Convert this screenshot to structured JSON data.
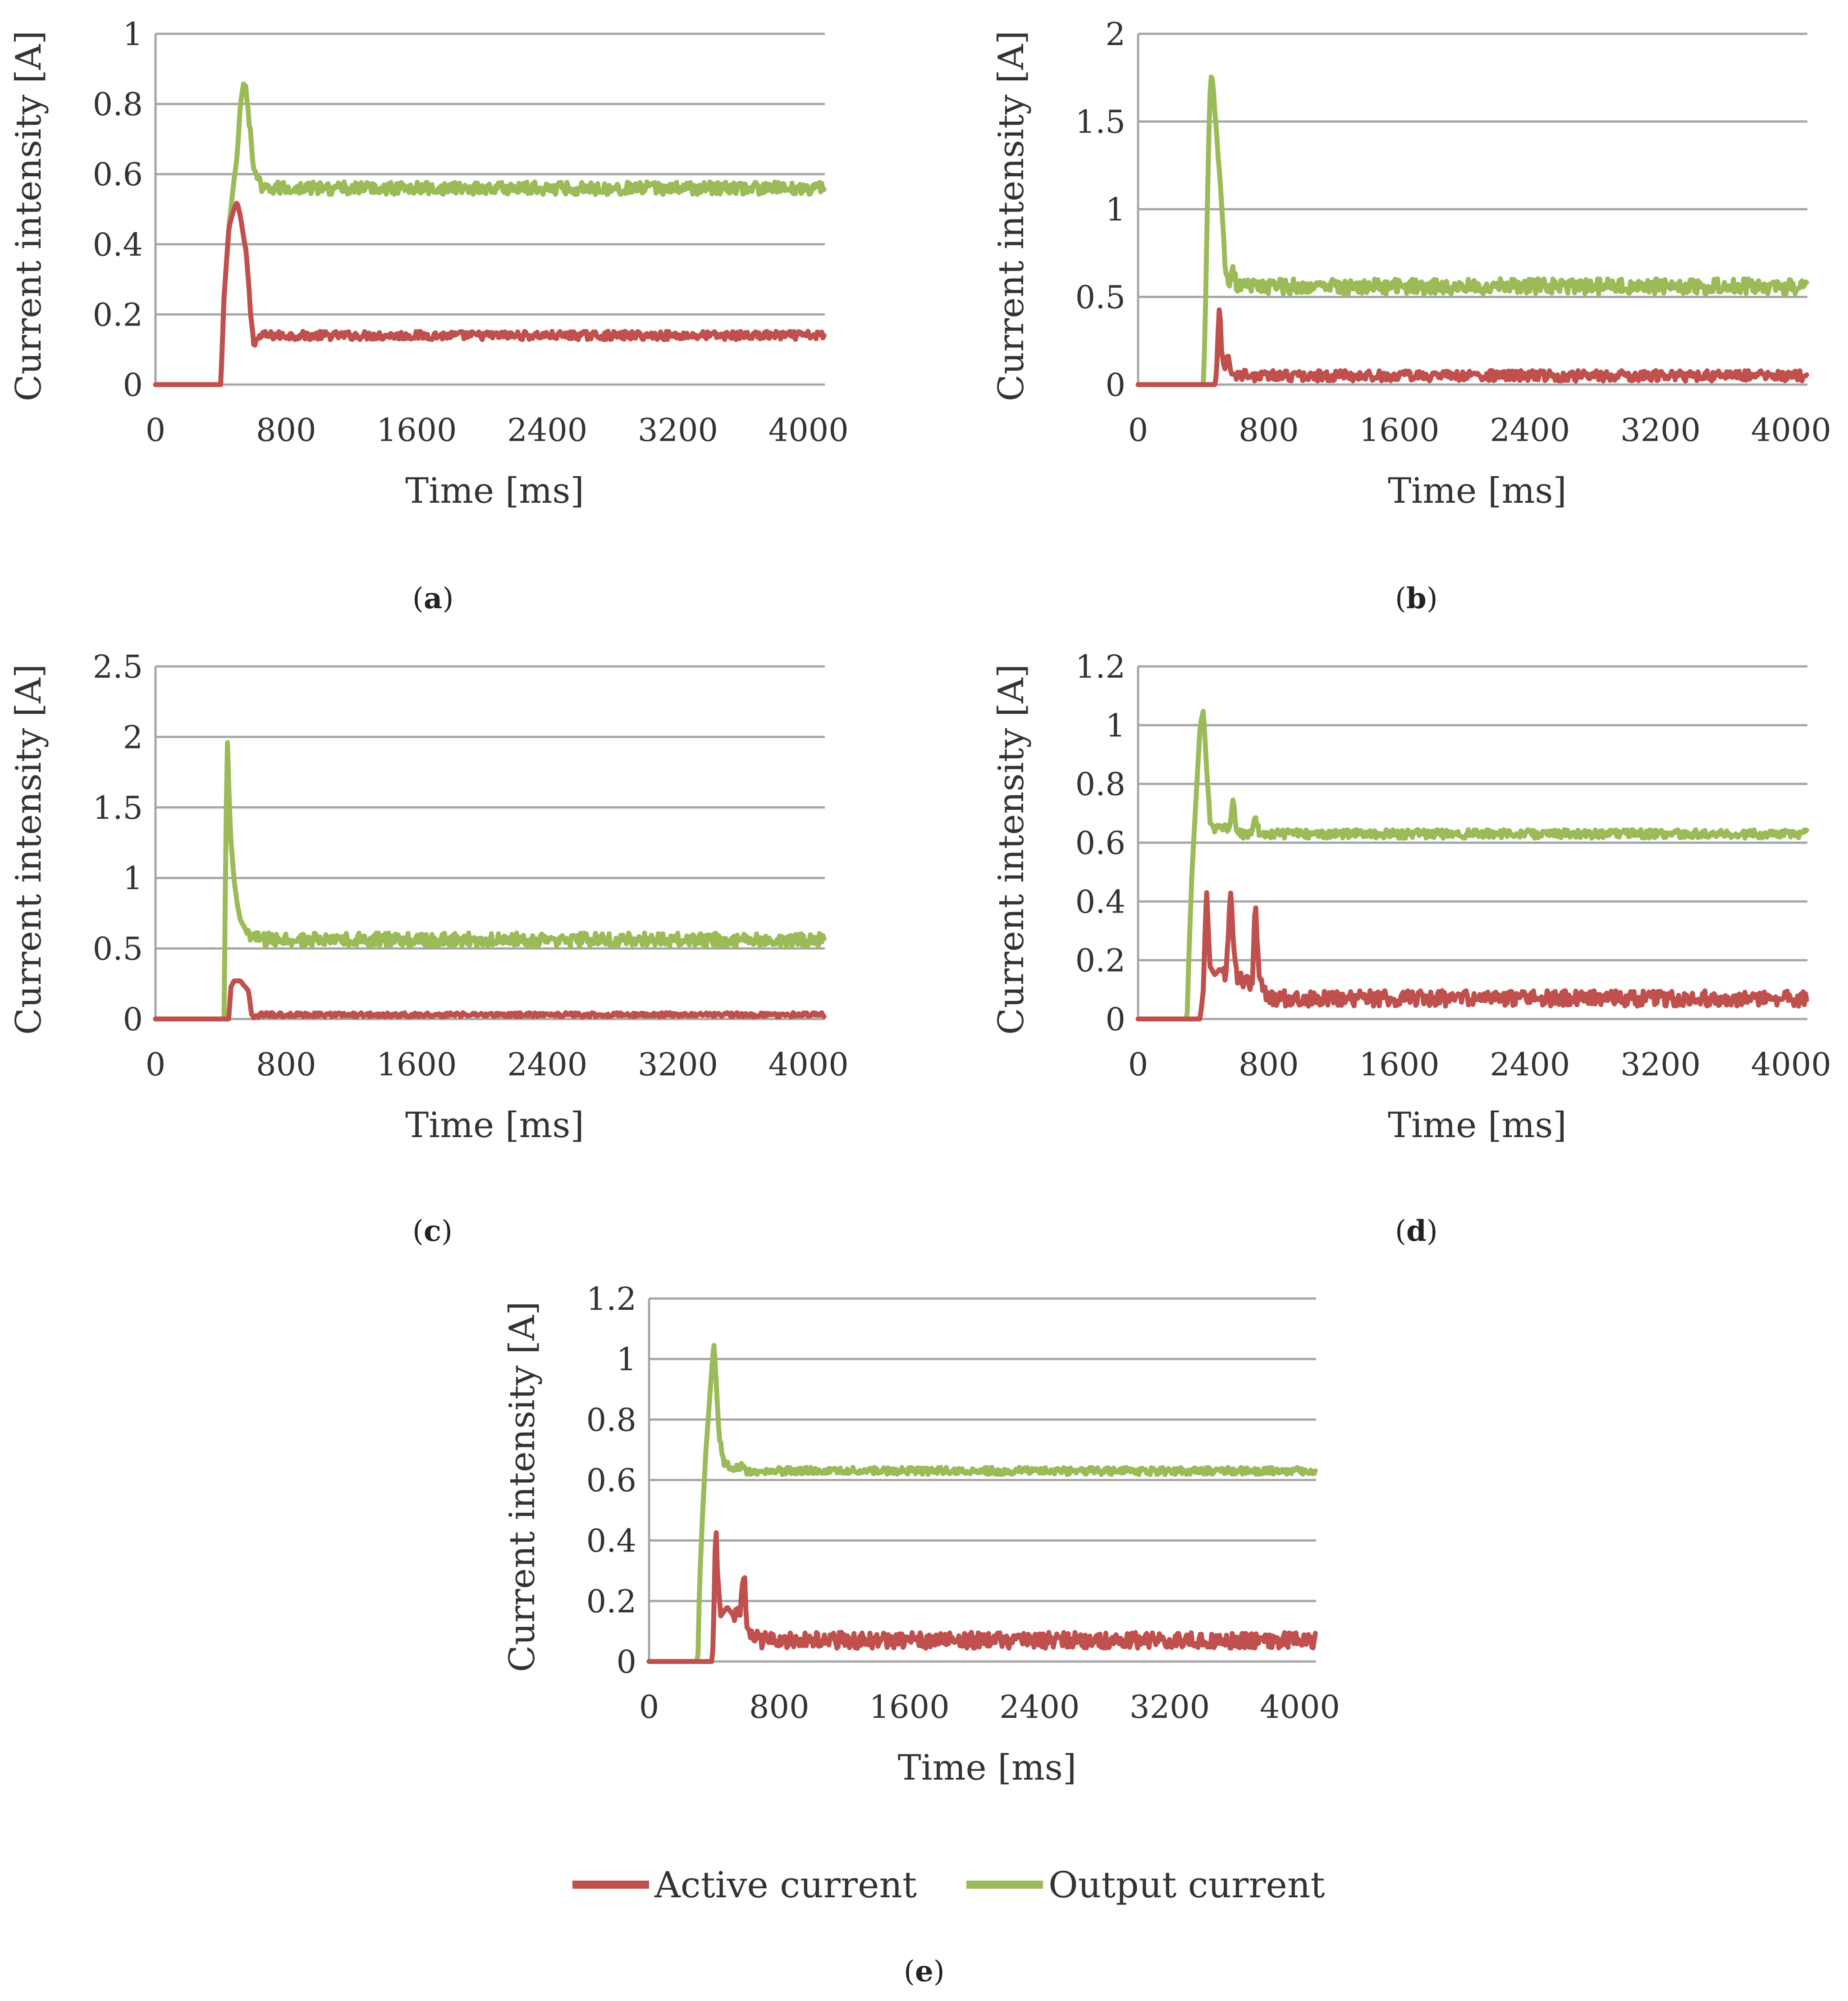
{
  "colors": {
    "active": "#c0504d",
    "output": "#9bbb59",
    "grid": "#a6a6a6",
    "axis_text": "#333333"
  },
  "legend": {
    "active_label": "Active current",
    "output_label": "Output current"
  },
  "chart_data": [
    {
      "id": "a",
      "type": "line",
      "panel_label": "a",
      "xlabel": "Time [ms]",
      "ylabel": "Current intensity [A]",
      "xlim": [
        0,
        4100
      ],
      "ylim": [
        0,
        1
      ],
      "xticks": [
        0,
        800,
        1600,
        2400,
        3200,
        4000
      ],
      "yticks": [
        0,
        0.2,
        0.4,
        0.6,
        0.8,
        1
      ],
      "ytick_labels": [
        "0",
        "0.2",
        "0.4",
        "0.6",
        "0.8",
        "1"
      ],
      "series": [
        {
          "name": "Active current",
          "color_key": "active",
          "noise": 0.012,
          "x": [
            0,
            400,
            420,
            450,
            480,
            500,
            520,
            540,
            560,
            580,
            600,
            650,
            700,
            800,
            1600,
            2400,
            3200,
            4100
          ],
          "y": [
            0,
            0,
            0.25,
            0.45,
            0.5,
            0.52,
            0.48,
            0.42,
            0.35,
            0.22,
            0.12,
            0.14,
            0.14,
            0.14,
            0.14,
            0.14,
            0.14,
            0.14
          ]
        },
        {
          "name": "Output current",
          "color_key": "output",
          "noise": 0.018,
          "x": [
            0,
            400,
            420,
            450,
            480,
            500,
            520,
            540,
            560,
            580,
            600,
            620,
            650,
            700,
            800,
            1600,
            2400,
            3200,
            4100
          ],
          "y": [
            0,
            0,
            0.25,
            0.45,
            0.58,
            0.65,
            0.8,
            0.86,
            0.82,
            0.72,
            0.62,
            0.6,
            0.55,
            0.56,
            0.56,
            0.56,
            0.56,
            0.56,
            0.56
          ]
        }
      ]
    },
    {
      "id": "b",
      "type": "line",
      "panel_label": "b",
      "xlabel": "Time [ms]",
      "ylabel": "Current intensity [A]",
      "xlim": [
        0,
        4100
      ],
      "ylim": [
        0,
        2
      ],
      "xticks": [
        0,
        800,
        1600,
        2400,
        3200,
        4000
      ],
      "yticks": [
        0,
        0.5,
        1,
        1.5,
        2
      ],
      "ytick_labels": [
        "0",
        "0.5",
        "1",
        "1.5",
        "2"
      ],
      "series": [
        {
          "name": "Active current",
          "color_key": "active",
          "noise": 0.015,
          "x": [
            0,
            450,
            470,
            480,
            490,
            500,
            510,
            530,
            550,
            560,
            570,
            600,
            700,
            800,
            1600,
            2400,
            3200,
            4100
          ],
          "y": [
            0,
            0,
            0,
            0.05,
            0.3,
            0.48,
            0.2,
            0.08,
            0.18,
            0.12,
            0.06,
            0.06,
            0.05,
            0.05,
            0.05,
            0.05,
            0.05,
            0.05
          ]
        },
        {
          "name": "Output current",
          "color_key": "output",
          "noise": 0.022,
          "x": [
            0,
            400,
            410,
            420,
            430,
            440,
            450,
            460,
            470,
            480,
            490,
            500,
            520,
            540,
            560,
            580,
            600,
            650,
            700,
            800,
            1600,
            2400,
            3200,
            4100
          ],
          "y": [
            0,
            0,
            0.3,
            0.8,
            1.3,
            1.65,
            1.78,
            1.7,
            1.55,
            1.45,
            1.3,
            1.2,
            0.9,
            0.6,
            0.55,
            0.68,
            0.57,
            0.56,
            0.56,
            0.56,
            0.56,
            0.56,
            0.56,
            0.56
          ]
        }
      ]
    },
    {
      "id": "c",
      "type": "line",
      "panel_label": "c",
      "xlabel": "Time [ms]",
      "ylabel": "Current intensity [A]",
      "xlim": [
        0,
        4100
      ],
      "ylim": [
        0,
        2.5
      ],
      "xticks": [
        0,
        800,
        1600,
        2400,
        3200,
        4000
      ],
      "yticks": [
        0,
        0.5,
        1,
        1.5,
        2,
        2.5
      ],
      "ytick_labels": [
        "0",
        "0.5",
        "1",
        "1.5",
        "2",
        "2.5"
      ],
      "series": [
        {
          "name": "Active current",
          "color_key": "active",
          "noise": 0.006,
          "x": [
            0,
            430,
            450,
            460,
            480,
            520,
            540,
            570,
            590,
            600,
            620,
            650,
            700,
            800,
            1600,
            2400,
            3200,
            4100
          ],
          "y": [
            0,
            0,
            0,
            0.22,
            0.27,
            0.27,
            0.24,
            0.2,
            0.02,
            0.0,
            0.02,
            0.03,
            0.03,
            0.03,
            0.03,
            0.03,
            0.03,
            0.03
          ]
        },
        {
          "name": "Output current",
          "color_key": "output",
          "noise": 0.02,
          "x": [
            0,
            420,
            430,
            440,
            450,
            460,
            480,
            500,
            520,
            560,
            600,
            650,
            700,
            800,
            1600,
            2400,
            3200,
            4100
          ],
          "y": [
            0,
            0,
            1.2,
            2.0,
            1.6,
            1.3,
            1.0,
            0.82,
            0.7,
            0.62,
            0.58,
            0.56,
            0.56,
            0.56,
            0.56,
            0.56,
            0.56,
            0.56
          ]
        }
      ]
    },
    {
      "id": "d",
      "type": "line",
      "panel_label": "d",
      "xlabel": "Time [ms]",
      "ylabel": "Current intensity [A]",
      "xlim": [
        0,
        4100
      ],
      "ylim": [
        0,
        1.2
      ],
      "xticks": [
        0,
        800,
        1600,
        2400,
        3200,
        4000
      ],
      "yticks": [
        0,
        0.2,
        0.4,
        0.6,
        0.8,
        1,
        1.2
      ],
      "ytick_labels": [
        "0",
        "0.2",
        "0.4",
        "0.6",
        "0.8",
        "1",
        "1.2"
      ],
      "series": [
        {
          "name": "Active current",
          "color_key": "active",
          "noise": 0.022,
          "x": [
            0,
            360,
            380,
            400,
            410,
            420,
            440,
            470,
            500,
            540,
            560,
            570,
            580,
            600,
            640,
            700,
            710,
            720,
            740,
            760,
            800,
            1600,
            2400,
            3200,
            4100
          ],
          "y": [
            0,
            0,
            0,
            0.1,
            0.3,
            0.43,
            0.18,
            0.15,
            0.17,
            0.15,
            0.38,
            0.45,
            0.3,
            0.15,
            0.13,
            0.12,
            0.3,
            0.37,
            0.15,
            0.1,
            0.07,
            0.07,
            0.07,
            0.07,
            0.07
          ]
        },
        {
          "name": "Output current",
          "color_key": "output",
          "noise": 0.012,
          "x": [
            0,
            300,
            310,
            330,
            350,
            370,
            380,
            400,
            420,
            440,
            460,
            480,
            500,
            560,
            580,
            600,
            620,
            660,
            700,
            720,
            740,
            800,
            1600,
            2400,
            3200,
            4100
          ],
          "y": [
            0,
            0,
            0.2,
            0.5,
            0.7,
            0.9,
            1.0,
            1.05,
            0.85,
            0.68,
            0.65,
            0.65,
            0.65,
            0.65,
            0.76,
            0.64,
            0.63,
            0.63,
            0.63,
            0.7,
            0.63,
            0.63,
            0.63,
            0.63,
            0.63,
            0.63
          ]
        }
      ]
    },
    {
      "id": "e",
      "type": "line",
      "panel_label": "e",
      "xlabel": "Time [ms]",
      "ylabel": "Current intensity [A]",
      "xlim": [
        0,
        4100
      ],
      "ylim": [
        0,
        1.2
      ],
      "xticks": [
        0,
        800,
        1600,
        2400,
        3200,
        4000
      ],
      "yticks": [
        0,
        0.2,
        0.4,
        0.6,
        0.8,
        1,
        1.2
      ],
      "ytick_labels": [
        "0",
        "0.2",
        "0.4",
        "0.6",
        "0.8",
        "1",
        "1.2"
      ],
      "series": [
        {
          "name": "Active current",
          "color_key": "active",
          "noise": 0.022,
          "x": [
            0,
            380,
            390,
            400,
            410,
            420,
            440,
            480,
            520,
            560,
            580,
            590,
            600,
            620,
            640,
            700,
            800,
            1600,
            2400,
            3200,
            4100
          ],
          "y": [
            0,
            0,
            0,
            0.2,
            0.48,
            0.3,
            0.15,
            0.18,
            0.15,
            0.17,
            0.3,
            0.25,
            0.1,
            0.07,
            0.08,
            0.07,
            0.07,
            0.07,
            0.07,
            0.07,
            0.07
          ]
        },
        {
          "name": "Output current",
          "color_key": "output",
          "noise": 0.01,
          "x": [
            0,
            300,
            310,
            330,
            350,
            370,
            390,
            400,
            410,
            430,
            460,
            500,
            560,
            580,
            600,
            620,
            660,
            700,
            800,
            1600,
            2400,
            3200,
            4100
          ],
          "y": [
            0,
            0,
            0.25,
            0.5,
            0.7,
            0.85,
            1.0,
            1.05,
            0.95,
            0.75,
            0.66,
            0.64,
            0.64,
            0.66,
            0.63,
            0.63,
            0.63,
            0.63,
            0.63,
            0.63,
            0.63,
            0.63,
            0.63
          ]
        }
      ]
    }
  ]
}
